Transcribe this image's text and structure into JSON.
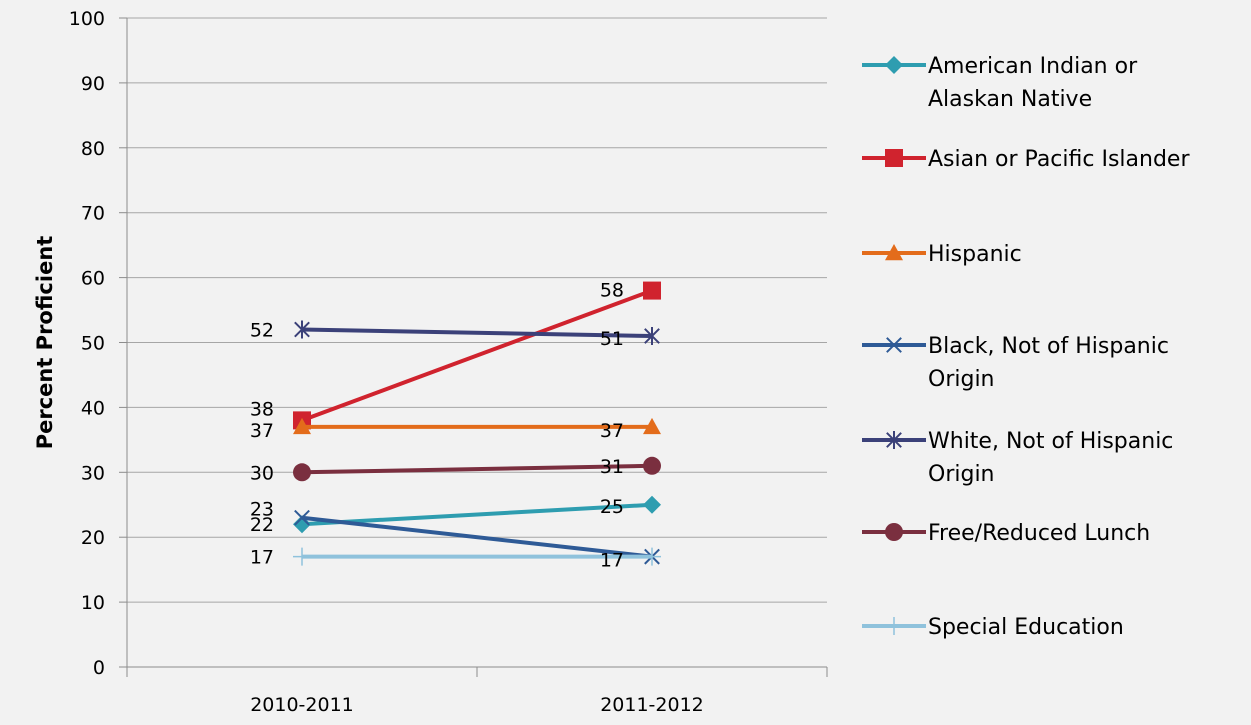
{
  "chart_data": {
    "type": "line",
    "title": "",
    "xlabel": "",
    "ylabel": "Percent Proficient",
    "ylim": [
      0,
      100
    ],
    "yticks": [
      0,
      10,
      20,
      30,
      40,
      50,
      60,
      70,
      80,
      90,
      100
    ],
    "categories": [
      "2010-2011",
      "2011-2012"
    ],
    "grid": true,
    "legend_position": "right",
    "series": [
      {
        "name": "American Indian or Alaskan Native",
        "values": [
          22,
          25
        ],
        "color": "#2e9db0",
        "marker": "diamond",
        "value_labels": [
          "22",
          "25"
        ]
      },
      {
        "name": "Asian or Pacific Islander",
        "values": [
          38,
          58
        ],
        "color": "#d0232e",
        "marker": "square",
        "value_labels": [
          "38",
          "58"
        ]
      },
      {
        "name": "Hispanic",
        "values": [
          37,
          37
        ],
        "color": "#e36c1b",
        "marker": "triangle",
        "value_labels": [
          "37",
          "37"
        ]
      },
      {
        "name": "Black, Not of Hispanic Origin",
        "values": [
          23,
          17
        ],
        "color": "#2e5a96",
        "marker": "x",
        "value_labels": [
          "23",
          "17"
        ]
      },
      {
        "name": "White, Not of Hispanic Origin",
        "values": [
          52,
          51
        ],
        "color": "#3b4179",
        "marker": "star",
        "value_labels": [
          "52",
          "51"
        ]
      },
      {
        "name": "Free/Reduced Lunch",
        "values": [
          30,
          31
        ],
        "color": "#7a2f3f",
        "marker": "circle",
        "value_labels": [
          "30",
          "31"
        ]
      },
      {
        "name": "Special Education",
        "values": [
          17,
          17
        ],
        "color": "#8fc2dc",
        "marker": "plus",
        "value_labels": [
          "17",
          ""
        ]
      }
    ]
  }
}
